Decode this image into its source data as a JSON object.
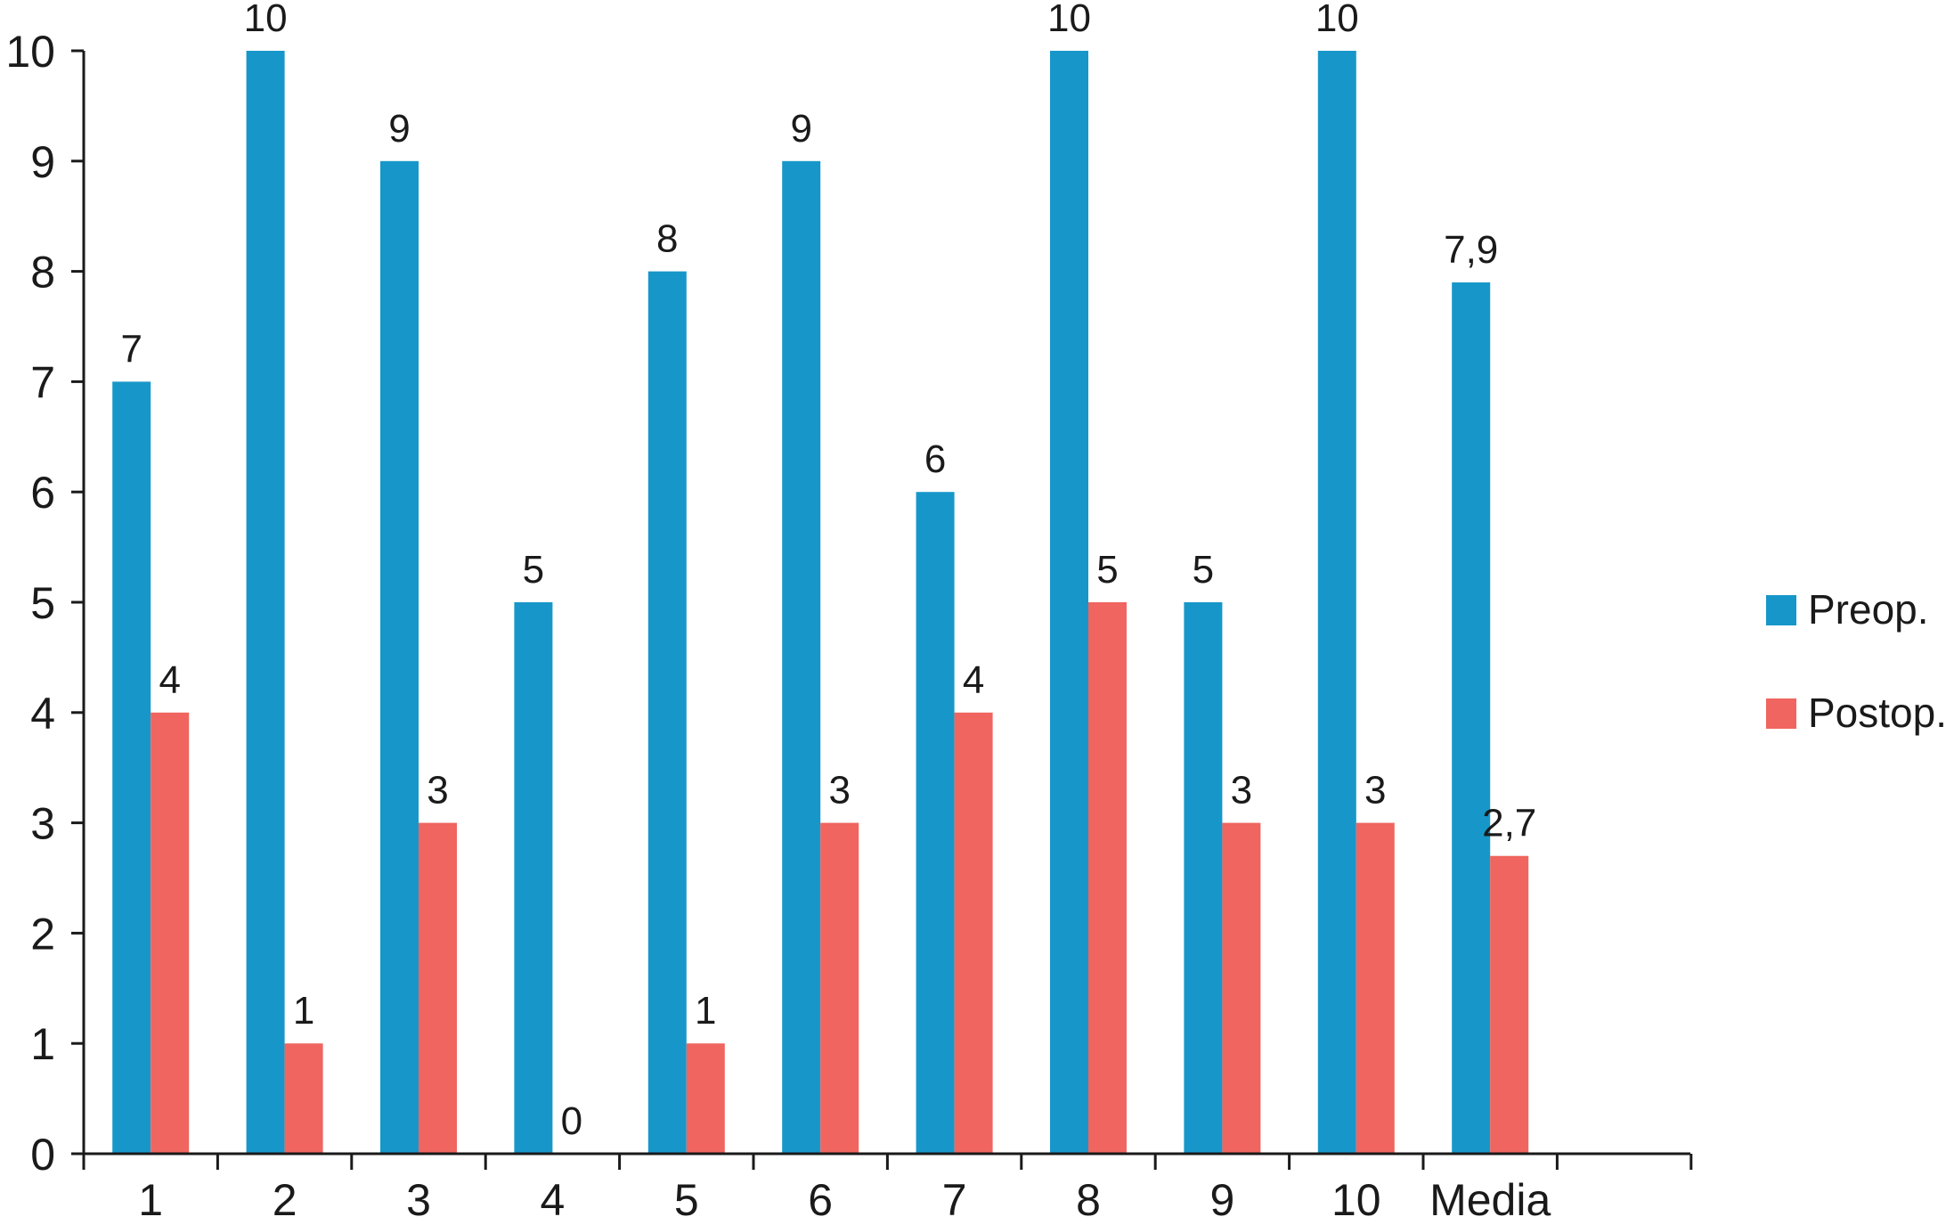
{
  "chart_data": {
    "type": "bar",
    "title": "",
    "xlabel": "",
    "ylabel": "",
    "categories": [
      "1",
      "2",
      "3",
      "4",
      "5",
      "6",
      "7",
      "8",
      "9",
      "10",
      "Media"
    ],
    "series": [
      {
        "name": "Preop.",
        "color": "#1797c9",
        "values": [
          7,
          10,
          9,
          5,
          8,
          9,
          6,
          10,
          5,
          10,
          7.9
        ],
        "labels": [
          "7",
          "10",
          "9",
          "5",
          "8",
          "9",
          "6",
          "10",
          "5",
          "10",
          "7,9"
        ]
      },
      {
        "name": "Postop.",
        "color": "#f0655f",
        "values": [
          4,
          1,
          3,
          0,
          1,
          3,
          4,
          5,
          3,
          3,
          2.7
        ],
        "labels": [
          "4",
          "1",
          "3",
          "0",
          "1",
          "3",
          "4",
          "5",
          "3",
          "3",
          "2,7"
        ]
      }
    ],
    "ylim": [
      0,
      10
    ],
    "yticks": [
      "0",
      "1",
      "2",
      "3",
      "4",
      "5",
      "6",
      "7",
      "8",
      "9",
      "10"
    ],
    "grid": false,
    "legend_position": "right"
  }
}
